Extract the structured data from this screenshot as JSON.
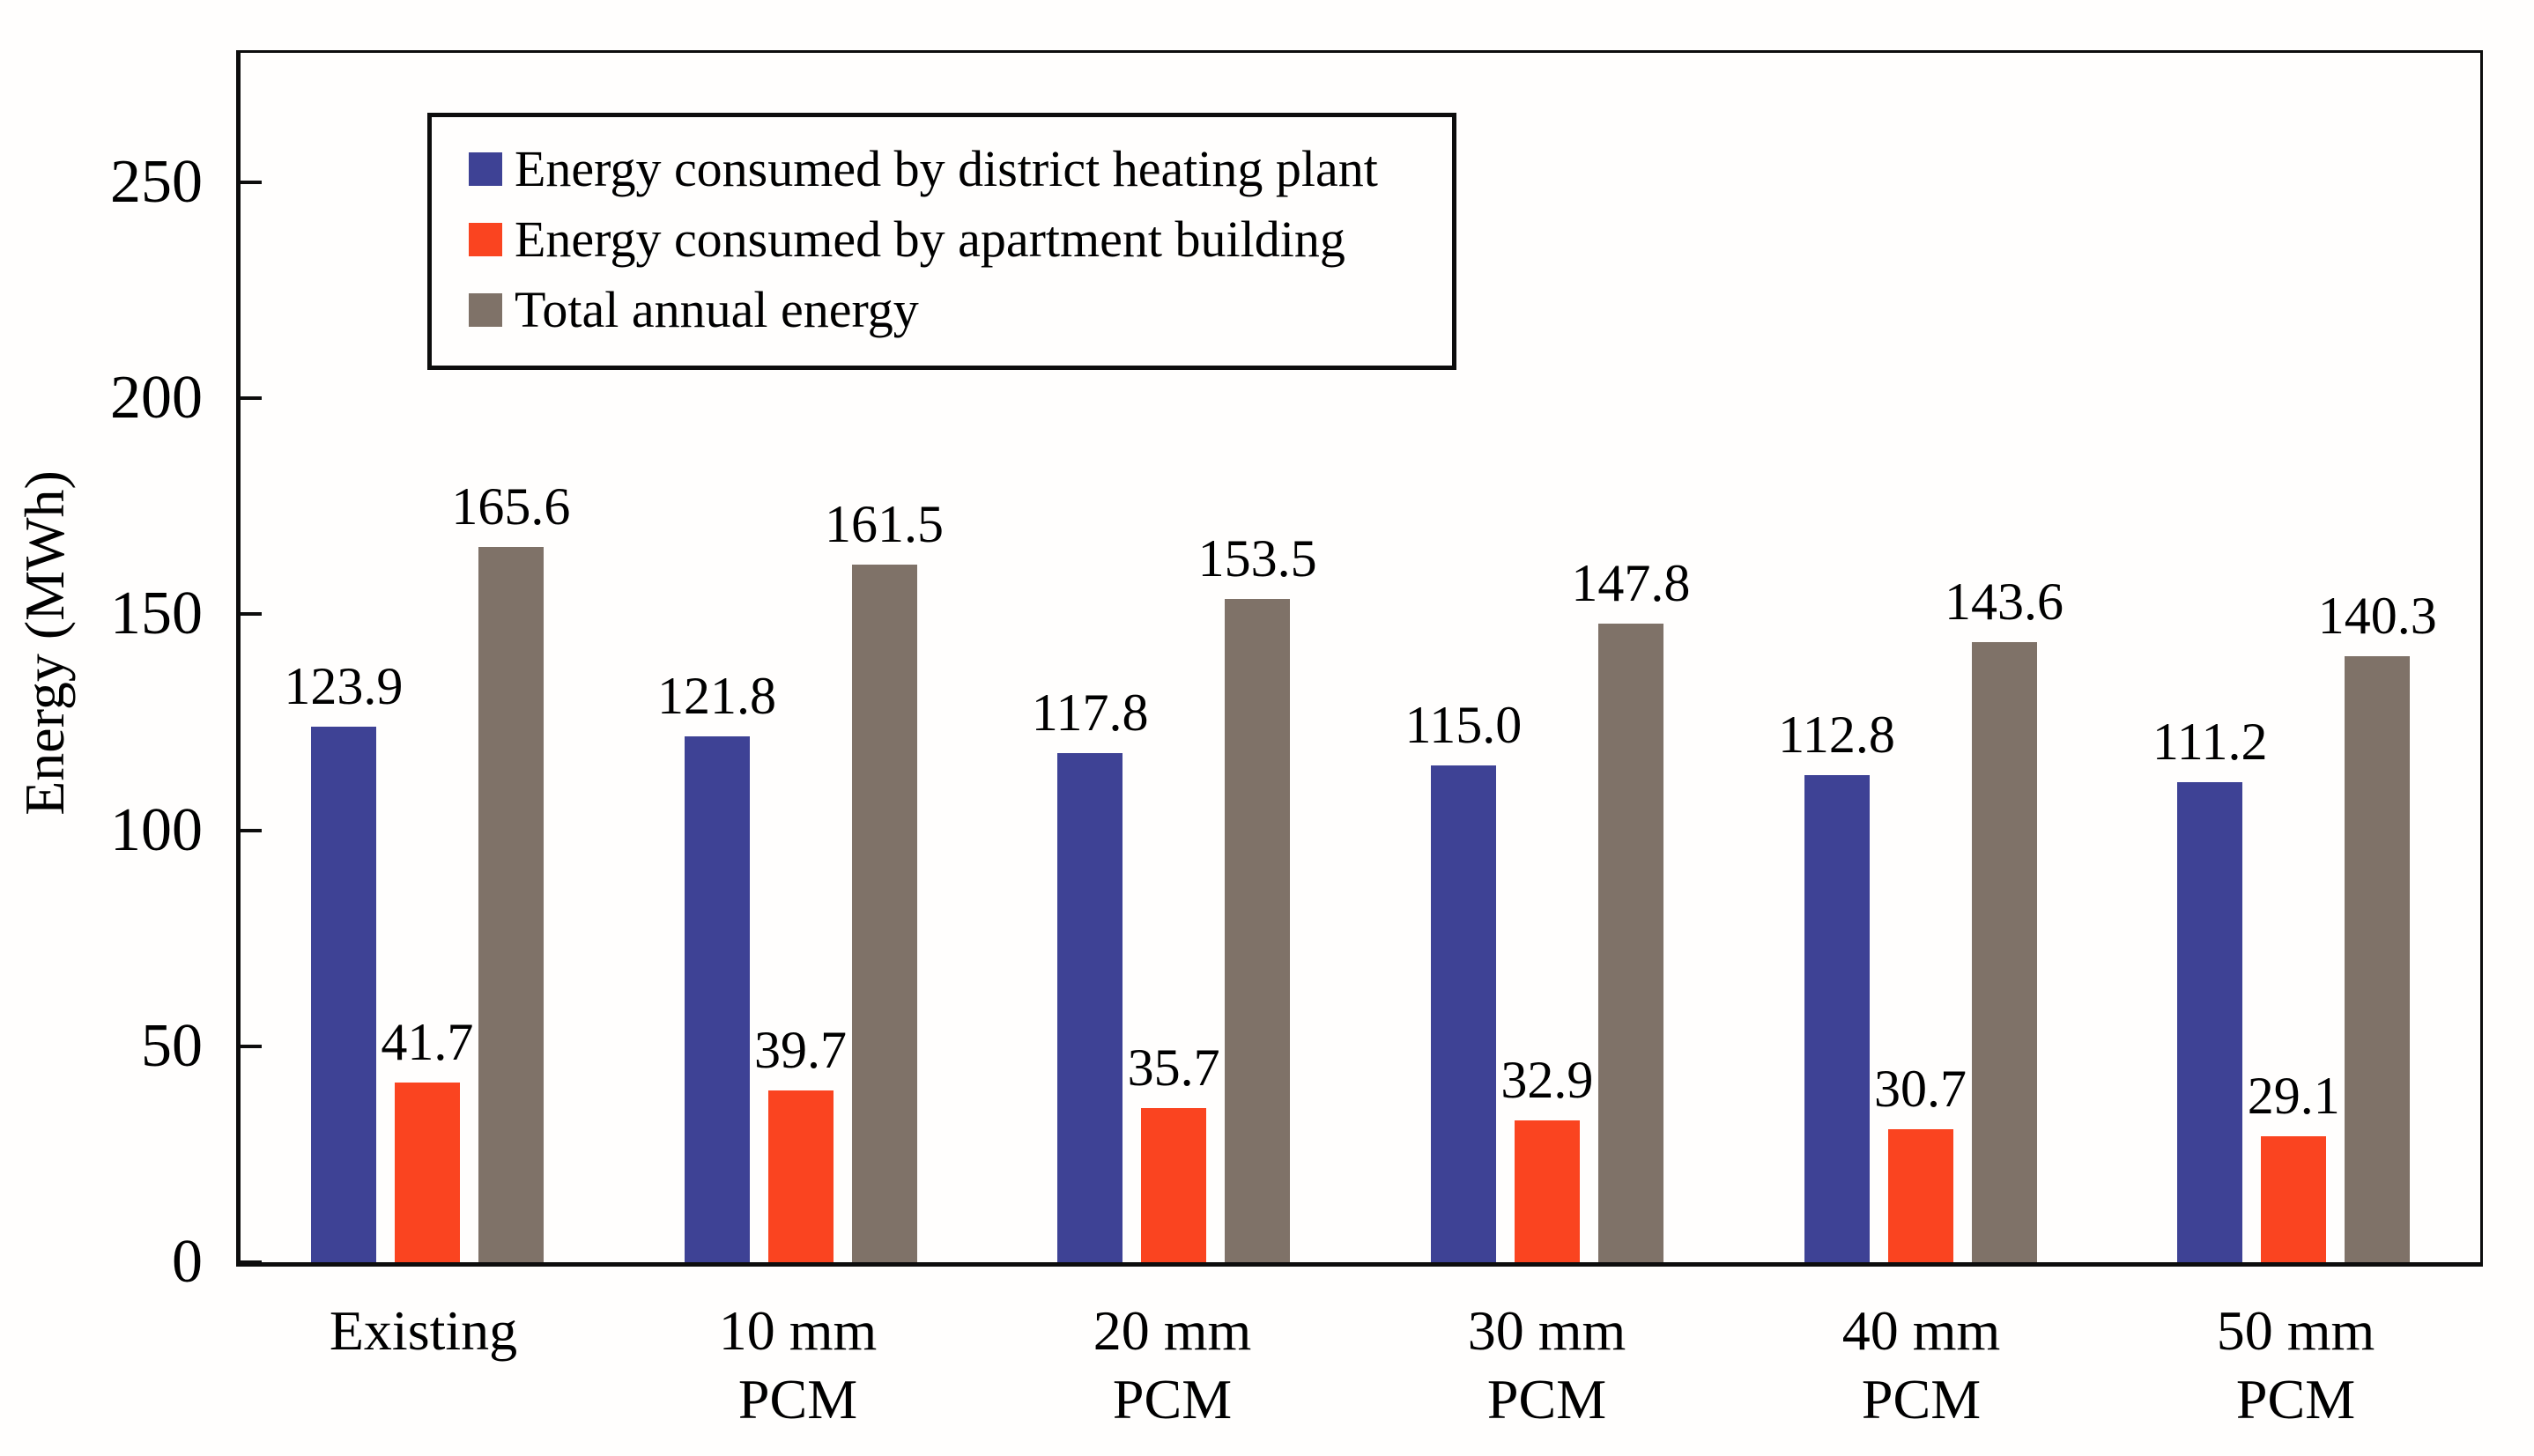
{
  "figure": {
    "background_color": "#ffffff",
    "axis_color": "#0d0d0d"
  },
  "chart_data": {
    "type": "bar",
    "title": "",
    "xlabel": "",
    "ylabel": "Energy (MWh)",
    "ylim": [
      0,
      280
    ],
    "yticks": [
      0,
      50,
      100,
      150,
      200,
      250
    ],
    "grid": false,
    "legend_position": "upper-left-inside",
    "value_labels": true,
    "categories": [
      "Existing",
      "10 mm PCM",
      "20 mm PCM",
      "30 mm PCM",
      "40 mm PCM",
      "50 mm PCM"
    ],
    "categories_display": [
      [
        "Existing"
      ],
      [
        "10 mm",
        "PCM"
      ],
      [
        "20 mm",
        "PCM"
      ],
      [
        "30 mm",
        "PCM"
      ],
      [
        "40 mm",
        "PCM"
      ],
      [
        "50 mm",
        "PCM"
      ]
    ],
    "series": [
      {
        "name": "Energy consumed by district heating plant",
        "slug": "district-heating-plant",
        "color": "#3e4295",
        "values": [
          123.9,
          121.8,
          117.8,
          115.0,
          112.8,
          111.2
        ]
      },
      {
        "name": "Energy consumed by apartment building",
        "slug": "apartment-building",
        "color": "#fa4420",
        "values": [
          41.7,
          39.7,
          35.7,
          32.9,
          30.7,
          29.1
        ]
      },
      {
        "name": "Total annual energy",
        "slug": "total-annual-energy",
        "color": "#7f7268",
        "values": [
          165.6,
          161.5,
          153.5,
          147.8,
          143.6,
          140.3
        ]
      }
    ]
  }
}
